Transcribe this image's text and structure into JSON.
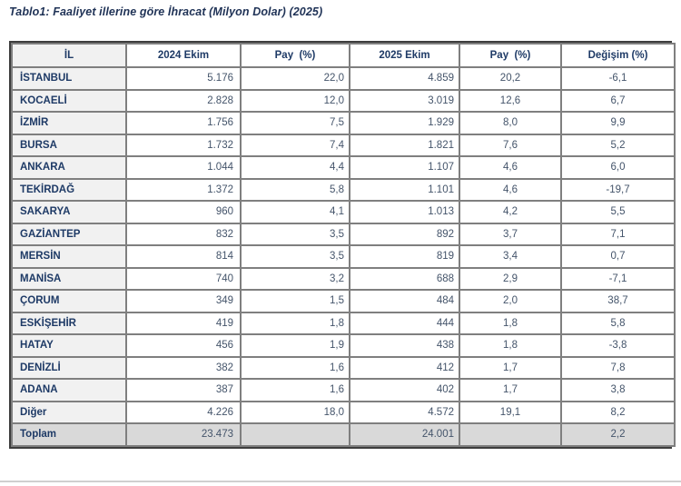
{
  "page": {
    "title": "Tablo1: Faaliyet illerine göre İhracat (Milyon Dolar) (2025)"
  },
  "colors": {
    "title_text": "#1F3256",
    "header_text": "#1E3A66",
    "number_text": "#44546A",
    "il_column_bg": "#F1F1F1",
    "total_row_bg": "#D9D9D9",
    "grid_border": "#7F7F7F",
    "outer_border": "#3D3D3D",
    "bottom_rule": "#CFCFCF"
  },
  "table": {
    "columns": [
      "İL",
      "2024 Ekim",
      "Pay  (%)",
      "2025 Ekim",
      "Pay  (%)",
      "Değişim (%)"
    ],
    "rows": [
      {
        "il": "İSTANBUL",
        "v2024": "5.176",
        "pay2024": "22,0",
        "v2025": "4.859",
        "pay2025": "20,2",
        "degisim": "-6,1",
        "is_total": false
      },
      {
        "il": "KOCAELİ",
        "v2024": "2.828",
        "pay2024": "12,0",
        "v2025": "3.019",
        "pay2025": "12,6",
        "degisim": "6,7",
        "is_total": false
      },
      {
        "il": "İZMİR",
        "v2024": "1.756",
        "pay2024": "7,5",
        "v2025": "1.929",
        "pay2025": "8,0",
        "degisim": "9,9",
        "is_total": false
      },
      {
        "il": "BURSA",
        "v2024": "1.732",
        "pay2024": "7,4",
        "v2025": "1.821",
        "pay2025": "7,6",
        "degisim": "5,2",
        "is_total": false
      },
      {
        "il": "ANKARA",
        "v2024": "1.044",
        "pay2024": "4,4",
        "v2025": "1.107",
        "pay2025": "4,6",
        "degisim": "6,0",
        "is_total": false
      },
      {
        "il": "TEKİRDAĞ",
        "v2024": "1.372",
        "pay2024": "5,8",
        "v2025": "1.101",
        "pay2025": "4,6",
        "degisim": "-19,7",
        "is_total": false
      },
      {
        "il": "SAKARYA",
        "v2024": "960",
        "pay2024": "4,1",
        "v2025": "1.013",
        "pay2025": "4,2",
        "degisim": "5,5",
        "is_total": false
      },
      {
        "il": "GAZİANTEP",
        "v2024": "832",
        "pay2024": "3,5",
        "v2025": "892",
        "pay2025": "3,7",
        "degisim": "7,1",
        "is_total": false
      },
      {
        "il": "MERSİN",
        "v2024": "814",
        "pay2024": "3,5",
        "v2025": "819",
        "pay2025": "3,4",
        "degisim": "0,7",
        "is_total": false
      },
      {
        "il": "MANİSA",
        "v2024": "740",
        "pay2024": "3,2",
        "v2025": "688",
        "pay2025": "2,9",
        "degisim": "-7,1",
        "is_total": false
      },
      {
        "il": "ÇORUM",
        "v2024": "349",
        "pay2024": "1,5",
        "v2025": "484",
        "pay2025": "2,0",
        "degisim": "38,7",
        "is_total": false
      },
      {
        "il": "ESKİŞEHİR",
        "v2024": "419",
        "pay2024": "1,8",
        "v2025": "444",
        "pay2025": "1,8",
        "degisim": "5,8",
        "is_total": false
      },
      {
        "il": "HATAY",
        "v2024": "456",
        "pay2024": "1,9",
        "v2025": "438",
        "pay2025": "1,8",
        "degisim": "-3,8",
        "is_total": false
      },
      {
        "il": "DENİZLİ",
        "v2024": "382",
        "pay2024": "1,6",
        "v2025": "412",
        "pay2025": "1,7",
        "degisim": "7,8",
        "is_total": false
      },
      {
        "il": "ADANA",
        "v2024": "387",
        "pay2024": "1,6",
        "v2025": "402",
        "pay2025": "1,7",
        "degisim": "3,8",
        "is_total": false
      },
      {
        "il": "Diğer",
        "v2024": "4.226",
        "pay2024": "18,0",
        "v2025": "4.572",
        "pay2025": "19,1",
        "degisim": "8,2",
        "is_total": false
      },
      {
        "il": "Toplam",
        "v2024": "23.473",
        "pay2024": "",
        "v2025": "24.001",
        "pay2025": "",
        "degisim": "2,2",
        "is_total": true
      }
    ]
  }
}
